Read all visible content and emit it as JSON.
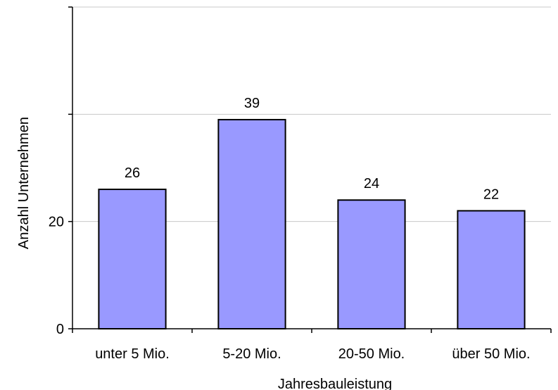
{
  "chart_data": {
    "type": "bar",
    "categories": [
      "unter 5 Mio.",
      "5-20 Mio.",
      "20-50 Mio.",
      "über 50 Mio."
    ],
    "values": [
      26,
      39,
      24,
      22
    ],
    "data_labels": [
      "26",
      "39",
      "24",
      "22"
    ],
    "xlabel": "Jahresbauleistung",
    "ylabel": "Anzahl Unternehmen",
    "ylim": [
      0,
      60
    ],
    "yticks": [
      0,
      20,
      40,
      60
    ],
    "ytick_labels": [
      "0",
      "20",
      "",
      ""
    ],
    "grid": true,
    "bar_color": "#9999ff",
    "bar_border_color": "#000000",
    "gridline_color": "#c8c8c8"
  }
}
